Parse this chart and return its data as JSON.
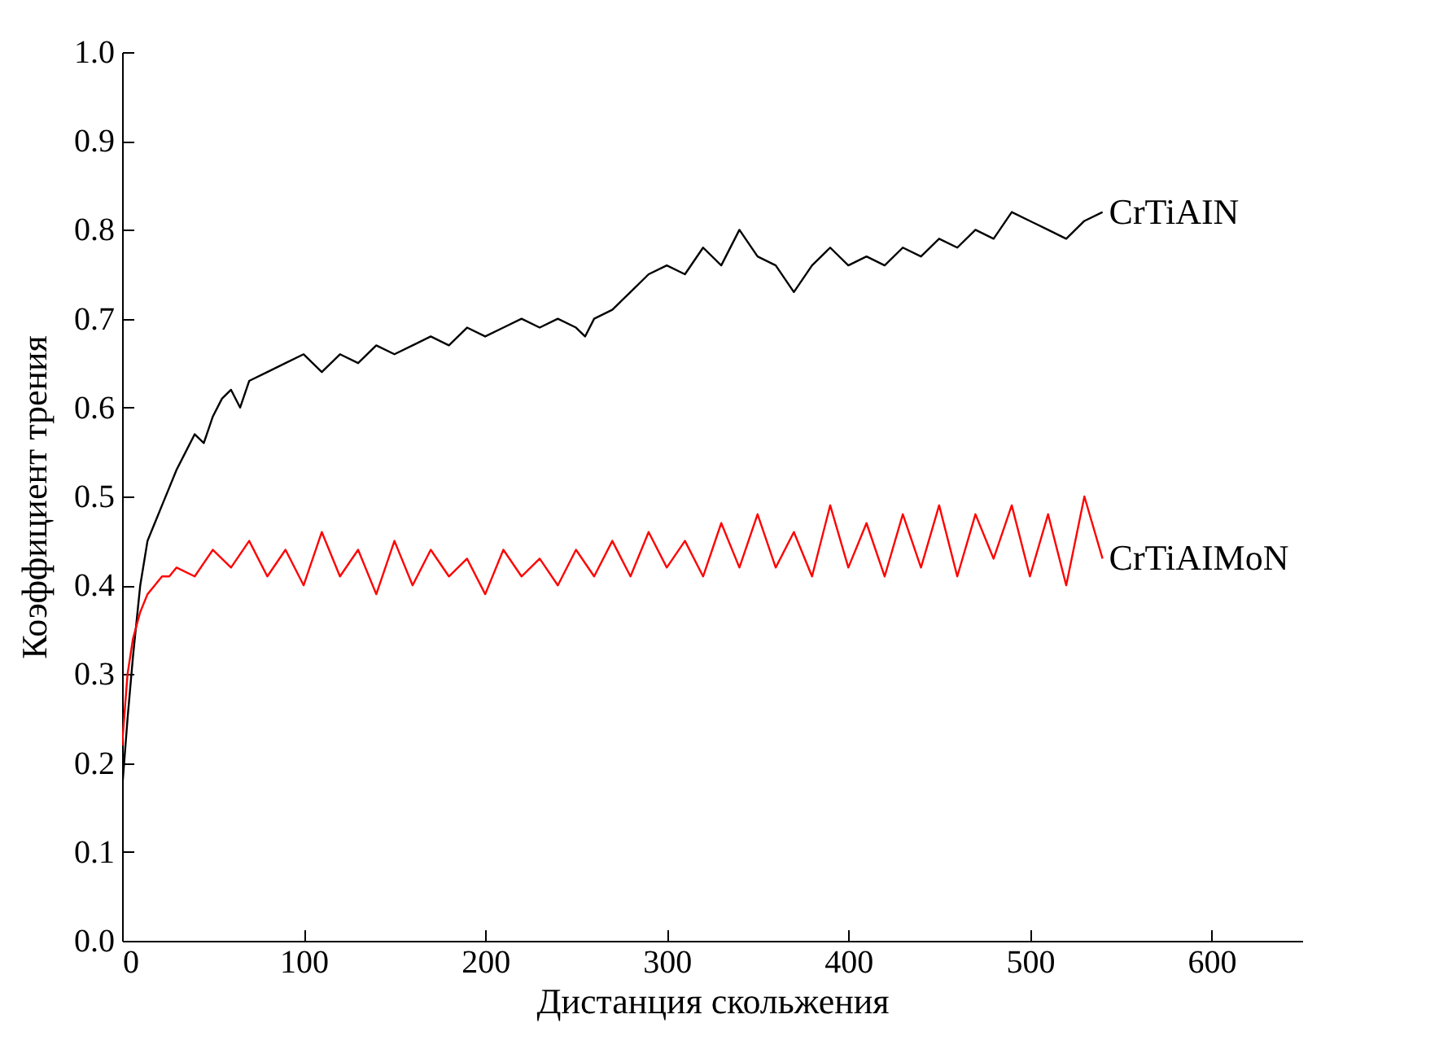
{
  "chart_data": {
    "type": "line",
    "xlabel": "Дистанция скольжения",
    "ylabel": "Коэффициент трения",
    "xlim": [
      0,
      650
    ],
    "xticks": [
      0,
      100,
      200,
      300,
      400,
      500,
      600
    ],
    "ylim": [
      0,
      1
    ],
    "yticks": [
      {
        "value": 0,
        "label": "0.0"
      },
      0.1,
      0.2,
      0.3,
      0.4,
      0.5,
      0.6,
      0.7,
      0.8,
      0.9,
      {
        "value": 1,
        "label": "1.0"
      }
    ],
    "grid": false,
    "legend": false,
    "series": [
      {
        "name": "CrTiAIN",
        "color": "#000000",
        "x": [
          0,
          3,
          6,
          10,
          14,
          18,
          22,
          26,
          30,
          35,
          40,
          45,
          50,
          55,
          60,
          65,
          70,
          80,
          90,
          100,
          110,
          120,
          130,
          140,
          150,
          160,
          170,
          180,
          190,
          200,
          210,
          220,
          230,
          240,
          250,
          255,
          260,
          270,
          280,
          290,
          300,
          310,
          320,
          330,
          340,
          350,
          360,
          370,
          380,
          390,
          400,
          410,
          420,
          430,
          440,
          450,
          460,
          470,
          480,
          490,
          500,
          510,
          520,
          530,
          540
        ],
        "values": [
          0.17,
          0.25,
          0.32,
          0.4,
          0.45,
          0.47,
          0.49,
          0.51,
          0.53,
          0.55,
          0.57,
          0.56,
          0.59,
          0.61,
          0.62,
          0.6,
          0.63,
          0.64,
          0.65,
          0.66,
          0.64,
          0.66,
          0.65,
          0.67,
          0.66,
          0.67,
          0.68,
          0.67,
          0.69,
          0.68,
          0.69,
          0.7,
          0.69,
          0.7,
          0.69,
          0.68,
          0.7,
          0.71,
          0.73,
          0.75,
          0.76,
          0.75,
          0.78,
          0.76,
          0.8,
          0.77,
          0.76,
          0.73,
          0.76,
          0.78,
          0.76,
          0.77,
          0.76,
          0.78,
          0.77,
          0.79,
          0.78,
          0.8,
          0.79,
          0.82,
          0.81,
          0.8,
          0.79,
          0.81,
          0.82
        ]
      },
      {
        "name": "CrTiAIMoN",
        "color": "#ff0000",
        "x": [
          0,
          3,
          6,
          10,
          14,
          18,
          22,
          26,
          30,
          40,
          50,
          60,
          70,
          80,
          90,
          100,
          110,
          120,
          130,
          140,
          150,
          160,
          170,
          180,
          190,
          200,
          210,
          220,
          230,
          240,
          250,
          260,
          270,
          280,
          290,
          300,
          310,
          320,
          330,
          340,
          350,
          360,
          370,
          380,
          390,
          400,
          410,
          420,
          430,
          440,
          450,
          460,
          470,
          480,
          490,
          500,
          510,
          520,
          530,
          540
        ],
        "values": [
          0.22,
          0.3,
          0.34,
          0.37,
          0.39,
          0.4,
          0.41,
          0.41,
          0.42,
          0.41,
          0.44,
          0.42,
          0.45,
          0.41,
          0.44,
          0.4,
          0.46,
          0.41,
          0.44,
          0.39,
          0.45,
          0.4,
          0.44,
          0.41,
          0.43,
          0.39,
          0.44,
          0.41,
          0.43,
          0.4,
          0.44,
          0.41,
          0.45,
          0.41,
          0.46,
          0.42,
          0.45,
          0.41,
          0.47,
          0.42,
          0.48,
          0.42,
          0.46,
          0.41,
          0.49,
          0.42,
          0.47,
          0.41,
          0.48,
          0.42,
          0.49,
          0.41,
          0.48,
          0.43,
          0.49,
          0.41,
          0.48,
          0.4,
          0.5,
          0.43
        ]
      }
    ]
  }
}
